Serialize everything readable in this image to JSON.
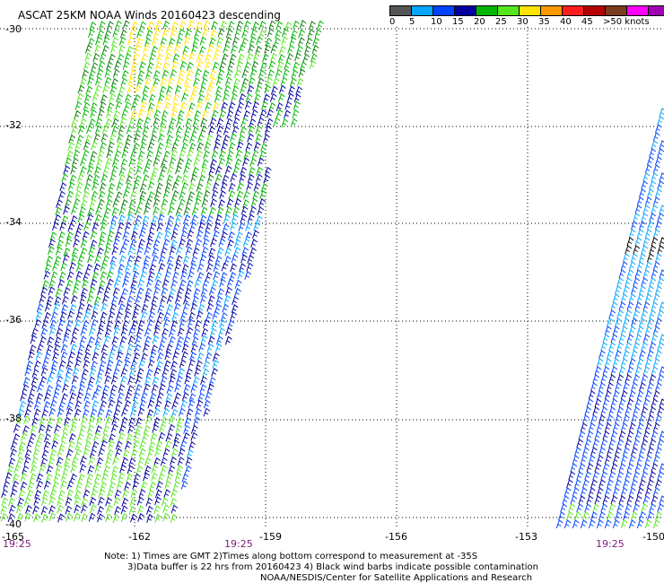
{
  "title": "ASCAT 25KM NOAA Winds 20160423 descending",
  "legend": {
    "labels": [
      "0",
      "5",
      "10",
      "15",
      "20",
      "25",
      "30",
      "35",
      "40",
      "45",
      ">50 knots"
    ],
    "colors": [
      "#555555",
      "#00a6ff",
      "#0044ff",
      "#0000a0",
      "#00b400",
      "#55e61e",
      "#ffe400",
      "#ff9900",
      "#ff1e1e",
      "#b40000",
      "#783c1e",
      "#ff00ff",
      "#a000b4",
      "#5000a0"
    ]
  },
  "axes": {
    "lon_ticks": [
      "-165",
      "-162",
      "-159",
      "-156",
      "-153",
      "-150"
    ],
    "lat_ticks": [
      "-30",
      "-32",
      "-34",
      "-36",
      "-38",
      "-40"
    ]
  },
  "times": [
    "19:25",
    "19:25",
    "19:25"
  ],
  "notes": [
    "Note: 1) Times are GMT 2)Times along bottom correspond to measurement at -35S",
    "3)Data buffer is 22 hrs from 20160423 4) Black wind barbs indicate possible contamination",
    "NOAA/NESDIS/Center for Satellite Applications and Research"
  ]
}
